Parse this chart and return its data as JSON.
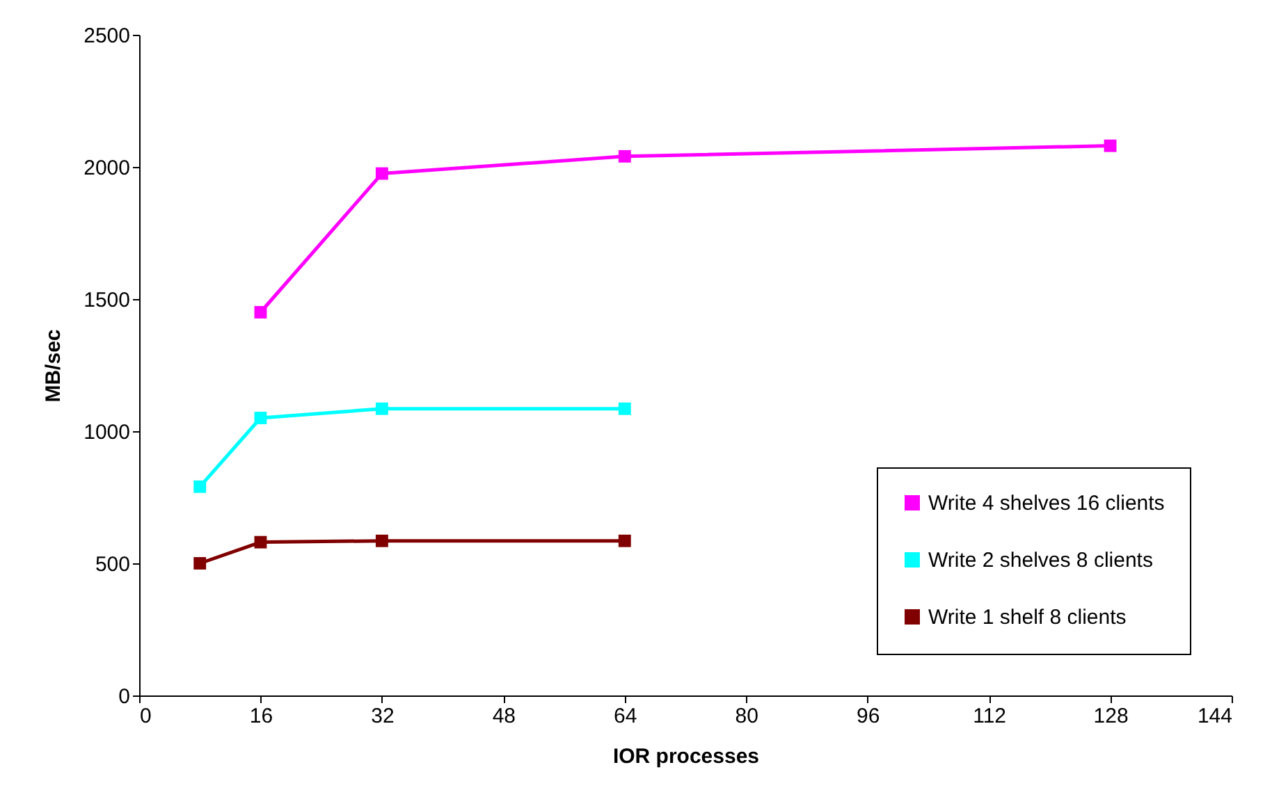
{
  "chart_data": {
    "type": "line",
    "xlabel": "IOR processes",
    "ylabel": "MB/sec",
    "xlim": [
      0,
      144
    ],
    "xticks": [
      0,
      16,
      32,
      48,
      64,
      80,
      96,
      112,
      128,
      144
    ],
    "ylim": [
      0,
      2500
    ],
    "yticks": [
      0,
      500,
      1000,
      1500,
      2000,
      2500
    ],
    "series": [
      {
        "name": "Write 4 shelves 16 clients",
        "color": "#ff00ff",
        "x": [
          16,
          32,
          64,
          128
        ],
        "values": [
          1450,
          1975,
          2040,
          2080
        ]
      },
      {
        "name": "Write 2 shelves 8 clients",
        "color": "#00ffff",
        "x": [
          8,
          16,
          32,
          64
        ],
        "values": [
          790,
          1050,
          1085,
          1085
        ]
      },
      {
        "name": "Write 1 shelf 8 clients",
        "color": "#800000",
        "x": [
          8,
          16,
          32,
          64
        ],
        "values": [
          500,
          580,
          585,
          585
        ]
      }
    ],
    "marker": "square",
    "line_style": "solid",
    "grid": false,
    "legend": "bottom right"
  }
}
